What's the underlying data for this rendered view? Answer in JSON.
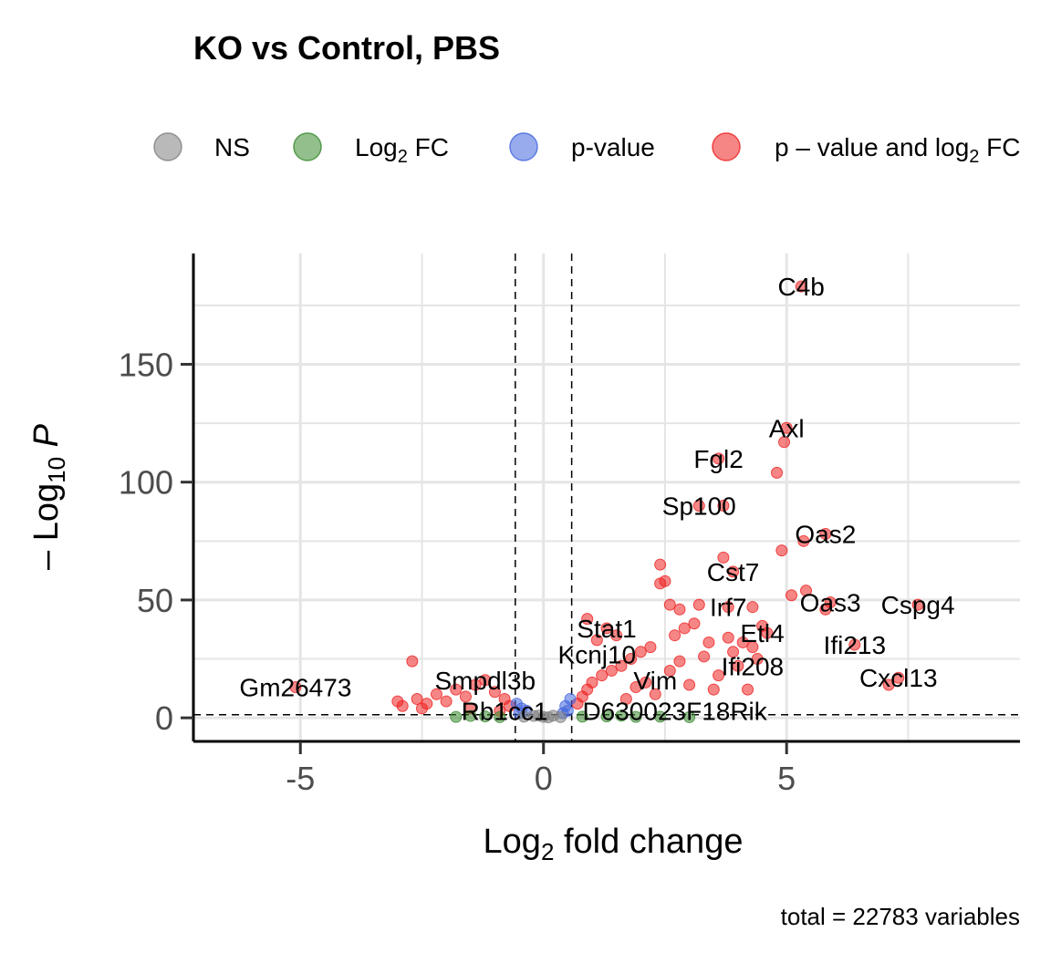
{
  "chart_data": {
    "type": "scatter",
    "title": "KO vs Control, PBS",
    "xlabel": {
      "pre": "Log",
      "sub": "2",
      "post": " fold change"
    },
    "ylabel": {
      "pre": "– Log",
      "sub": "10",
      "italic": "P"
    },
    "caption": "total = 22783 variables",
    "xlim": [
      -7.2,
      9.8
    ],
    "ylim": [
      -10,
      197
    ],
    "x_ticks": [
      -5,
      0,
      5
    ],
    "x_tick_labels": [
      "-5",
      "0",
      "5"
    ],
    "y_ticks": [
      0,
      50,
      100,
      150
    ],
    "y_tick_labels": [
      "0",
      "50",
      "100",
      "150"
    ],
    "fc_cutoff": 0.58,
    "p_cutoff_neglog10": 1.3,
    "grid": true,
    "legend_position": "top",
    "legend": [
      {
        "key": "ns",
        "label": "NS",
        "color": "#808080"
      },
      {
        "key": "fc",
        "label_pre": "Log",
        "label_sub": "2",
        "label_post": " FC",
        "color": "#3a8b2f"
      },
      {
        "key": "pv",
        "label": "p-value",
        "color": "#4466dd"
      },
      {
        "key": "both",
        "label_pre": "p – value and log",
        "label_sub": "2",
        "label_post": " FC",
        "color": "#ee2222"
      }
    ],
    "series": [
      {
        "key": "both",
        "points": [
          [
            5.3,
            183
          ],
          [
            5.0,
            123
          ],
          [
            4.95,
            117
          ],
          [
            3.6,
            110
          ],
          [
            4.8,
            104
          ],
          [
            3.2,
            90
          ],
          [
            3.7,
            90
          ],
          [
            5.8,
            78
          ],
          [
            5.35,
            75
          ],
          [
            4.9,
            71
          ],
          [
            3.7,
            68
          ],
          [
            2.4,
            65
          ],
          [
            3.9,
            62
          ],
          [
            2.5,
            58
          ],
          [
            2.4,
            57
          ],
          [
            5.4,
            54
          ],
          [
            5.1,
            52
          ],
          [
            5.9,
            49
          ],
          [
            5.8,
            46
          ],
          [
            3.2,
            48
          ],
          [
            3.8,
            47
          ],
          [
            4.3,
            47
          ],
          [
            2.8,
            46
          ],
          [
            7.7,
            48
          ],
          [
            2.6,
            48
          ],
          [
            6.4,
            31
          ],
          [
            7.3,
            17
          ],
          [
            7.1,
            14
          ],
          [
            4.5,
            39
          ],
          [
            4.6,
            36
          ],
          [
            4.3,
            30
          ],
          [
            4.1,
            32
          ],
          [
            3.9,
            28
          ],
          [
            4.0,
            22
          ],
          [
            3.1,
            40
          ],
          [
            2.9,
            38
          ],
          [
            2.7,
            35
          ],
          [
            3.4,
            32
          ],
          [
            3.3,
            26
          ],
          [
            2.2,
            30
          ],
          [
            2.0,
            28
          ],
          [
            1.8,
            25
          ],
          [
            1.6,
            22
          ],
          [
            1.4,
            20
          ],
          [
            1.2,
            18
          ],
          [
            1.0,
            15
          ],
          [
            0.9,
            12
          ],
          [
            0.8,
            9
          ],
          [
            0.7,
            6
          ],
          [
            1.1,
            33
          ],
          [
            1.3,
            38
          ],
          [
            0.9,
            42
          ],
          [
            1.5,
            35
          ],
          [
            2.1,
            15
          ],
          [
            2.6,
            20
          ],
          [
            3.0,
            14
          ],
          [
            3.6,
            18
          ],
          [
            4.2,
            12
          ],
          [
            2.3,
            10
          ],
          [
            1.7,
            8
          ],
          [
            1.9,
            13
          ],
          [
            2.8,
            24
          ],
          [
            3.5,
            12
          ],
          [
            4.4,
            25
          ],
          [
            3.8,
            34
          ],
          [
            -5.1,
            13
          ],
          [
            -2.7,
            24
          ],
          [
            -3.0,
            7
          ],
          [
            -2.6,
            8
          ],
          [
            -2.4,
            6
          ],
          [
            -2.2,
            10
          ],
          [
            -2.0,
            7
          ],
          [
            -1.8,
            12
          ],
          [
            -1.6,
            9
          ],
          [
            -1.4,
            14
          ],
          [
            -1.2,
            16
          ],
          [
            -1.0,
            11
          ],
          [
            -0.8,
            8
          ],
          [
            -0.7,
            5
          ],
          [
            -2.9,
            5
          ],
          [
            -1.5,
            4
          ],
          [
            -2.5,
            4
          ],
          [
            -0.9,
            3
          ]
        ]
      },
      {
        "key": "pv",
        "points": [
          [
            -0.55,
            6
          ],
          [
            -0.45,
            4
          ],
          [
            -0.5,
            2
          ],
          [
            0.45,
            5
          ],
          [
            0.5,
            3
          ],
          [
            0.4,
            2
          ],
          [
            0.55,
            8
          ],
          [
            -0.35,
            3
          ]
        ]
      },
      {
        "key": "fc",
        "points": [
          [
            -1.8,
            0.4
          ],
          [
            -1.2,
            0.6
          ],
          [
            -0.9,
            0.3
          ],
          [
            0.8,
            0.5
          ],
          [
            1.3,
            0.6
          ],
          [
            1.9,
            0.4
          ],
          [
            2.4,
            0.5
          ],
          [
            3.0,
            0.3
          ],
          [
            -1.5,
            0.8
          ],
          [
            1.6,
            0.9
          ]
        ]
      },
      {
        "key": "ns",
        "points": [
          [
            -0.4,
            0.5
          ],
          [
            -0.2,
            0.8
          ],
          [
            0.0,
            0.4
          ],
          [
            0.2,
            0.9
          ],
          [
            0.35,
            0.3
          ],
          [
            -0.1,
            1.0
          ],
          [
            0.1,
            0.2
          ]
        ]
      }
    ],
    "annotations": [
      {
        "label": "C4b",
        "x": 5.3,
        "y": 183
      },
      {
        "label": "Axl",
        "x": 5.0,
        "y": 123
      },
      {
        "label": "Fgl2",
        "x": 3.6,
        "y": 110
      },
      {
        "label": "Sp100",
        "x": 3.2,
        "y": 90
      },
      {
        "label": "Oas2",
        "x": 5.8,
        "y": 78
      },
      {
        "label": "Cst7",
        "x": 3.9,
        "y": 62
      },
      {
        "label": "Irf7",
        "x": 3.8,
        "y": 47
      },
      {
        "label": "Oas3",
        "x": 5.9,
        "y": 49
      },
      {
        "label": "Cspg4",
        "x": 7.7,
        "y": 48
      },
      {
        "label": "Stat1",
        "x": 1.3,
        "y": 38
      },
      {
        "label": "Etl4",
        "x": 4.5,
        "y": 36
      },
      {
        "label": "Ifi213",
        "x": 6.4,
        "y": 31
      },
      {
        "label": "Kcnj10",
        "x": 1.1,
        "y": 27
      },
      {
        "label": "Ifi208",
        "x": 4.3,
        "y": 22
      },
      {
        "label": "Cxcl13",
        "x": 7.3,
        "y": 17
      },
      {
        "label": "Gm26473",
        "x": -5.1,
        "y": 13
      },
      {
        "label": "Smpdl3b",
        "x": -1.2,
        "y": 16
      },
      {
        "label": "Vim",
        "x": 2.3,
        "y": 16
      },
      {
        "label": "Rb1cc1",
        "x": -0.8,
        "y": 3
      },
      {
        "label": "D630023F18Rik",
        "x": 2.7,
        "y": 3
      }
    ]
  }
}
